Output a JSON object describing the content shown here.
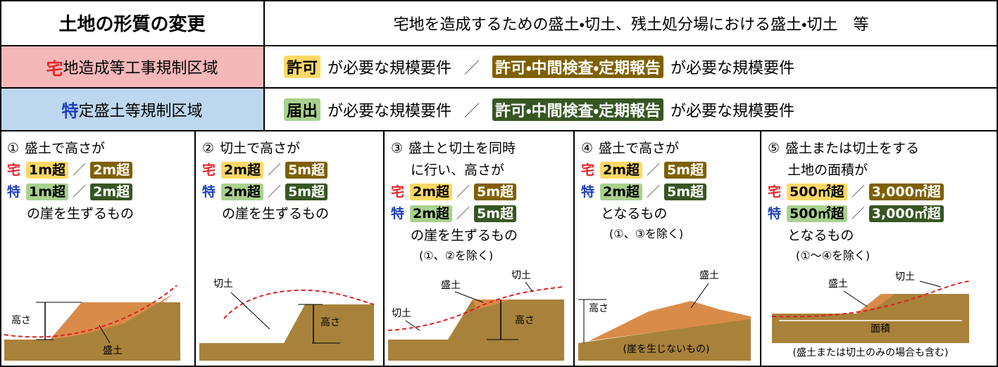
{
  "header": {
    "title": "土地の形質の変更",
    "description": "宅地を造成するための盛土・切土、残土処分場における盛土・切土　等"
  },
  "zones": [
    {
      "prefix": "宅",
      "name": "地造成等工事規制区域",
      "badge1": "許可",
      "text1": "が必要な規模要件",
      "separator": "／",
      "badge2": "許可・中間検査・定期報告",
      "text2": "が必要な規模要件"
    },
    {
      "prefix": "特",
      "name": "定盛土等規制区域",
      "badge1": "届出",
      "text1": "が必要な規模要件",
      "separator": "／",
      "badge2": "許可・中間検査・定期報告",
      "text2": "が必要な規模要件"
    }
  ],
  "cases": [
    {
      "number": "①",
      "heading": [
        "盛土で高さが"
      ],
      "rows": [
        {
          "mark": "宅",
          "a": "1m超",
          "b": "2m超"
        },
        {
          "mark": "特",
          "a": "1m超",
          "b": "2m超"
        }
      ],
      "separator": "／",
      "closing": "の崖を生ずるもの",
      "labels": [
        "高さ",
        "盛土"
      ]
    },
    {
      "number": "②",
      "heading": [
        "切土で高さが"
      ],
      "rows": [
        {
          "mark": "宅",
          "a": "2m超",
          "b": "5m超"
        },
        {
          "mark": "特",
          "a": "2m超",
          "b": "5m超"
        }
      ],
      "separator": "／",
      "closing": "の崖を生ずるもの",
      "labels": [
        "切土",
        "高さ"
      ]
    },
    {
      "number": "③",
      "heading": [
        "盛土と切土を同時",
        "に行い、高さが"
      ],
      "rows": [
        {
          "mark": "宅",
          "a": "2m超",
          "b": "5m超"
        },
        {
          "mark": "特",
          "a": "2m超",
          "b": "5m超"
        }
      ],
      "separator": "／",
      "closing": "の崖を生ずるもの",
      "note": "(①、②を除く)",
      "labels": [
        "盛土",
        "切土",
        "切土",
        "高さ"
      ]
    },
    {
      "number": "④",
      "heading": [
        "盛土で高さが"
      ],
      "rows": [
        {
          "mark": "宅",
          "a": "2m超",
          "b": "5m超"
        },
        {
          "mark": "特",
          "a": "2m超",
          "b": "5m超"
        }
      ],
      "separator": "／",
      "closing": "となるもの",
      "note": "(①、③を除く)",
      "labels": [
        "高さ",
        "盛土",
        "(崖を生じないもの)"
      ]
    },
    {
      "number": "⑤",
      "heading": [
        "盛土または切土をする",
        "土地の面積が"
      ],
      "rows": [
        {
          "mark": "宅",
          "a": "500㎡超",
          "b": "3,000㎡超"
        },
        {
          "mark": "特",
          "a": "500㎡超",
          "b": "3,000㎡超"
        }
      ],
      "separator": "／",
      "closing": "となるもの",
      "note": "(①～④を除く)",
      "labels": [
        "盛土",
        "切土",
        "面積",
        "(盛土または切土のみの場合も含む)"
      ]
    }
  ]
}
